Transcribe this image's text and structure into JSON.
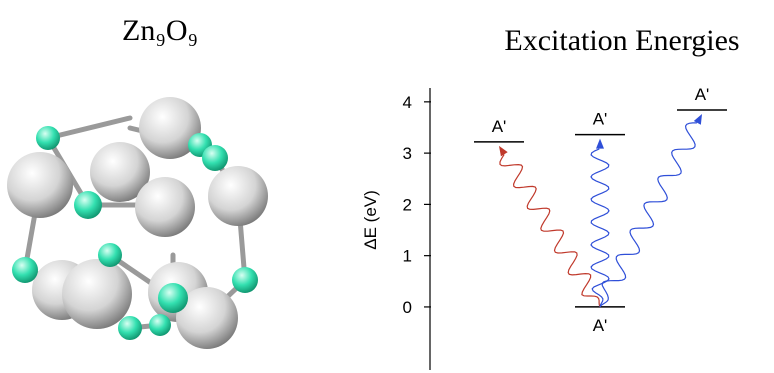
{
  "structure_title": "Zn₉O₉",
  "energy_diagram": {
    "title": "Excitation Energies",
    "y_label": "ΔE (eV)",
    "ylim": [
      -1.23,
      4.27
    ],
    "yticks": [
      0,
      1,
      2,
      3,
      4
    ],
    "ground": {
      "label": "A'",
      "value": 0
    },
    "levels": [
      {
        "label": "A'",
        "value": 3.22,
        "color": "#c0392b"
      },
      {
        "label": "A'",
        "value": 3.36,
        "color": "#2f4fd8"
      },
      {
        "label": "A'",
        "value": 3.84,
        "color": "#2f4fd8"
      }
    ]
  }
}
